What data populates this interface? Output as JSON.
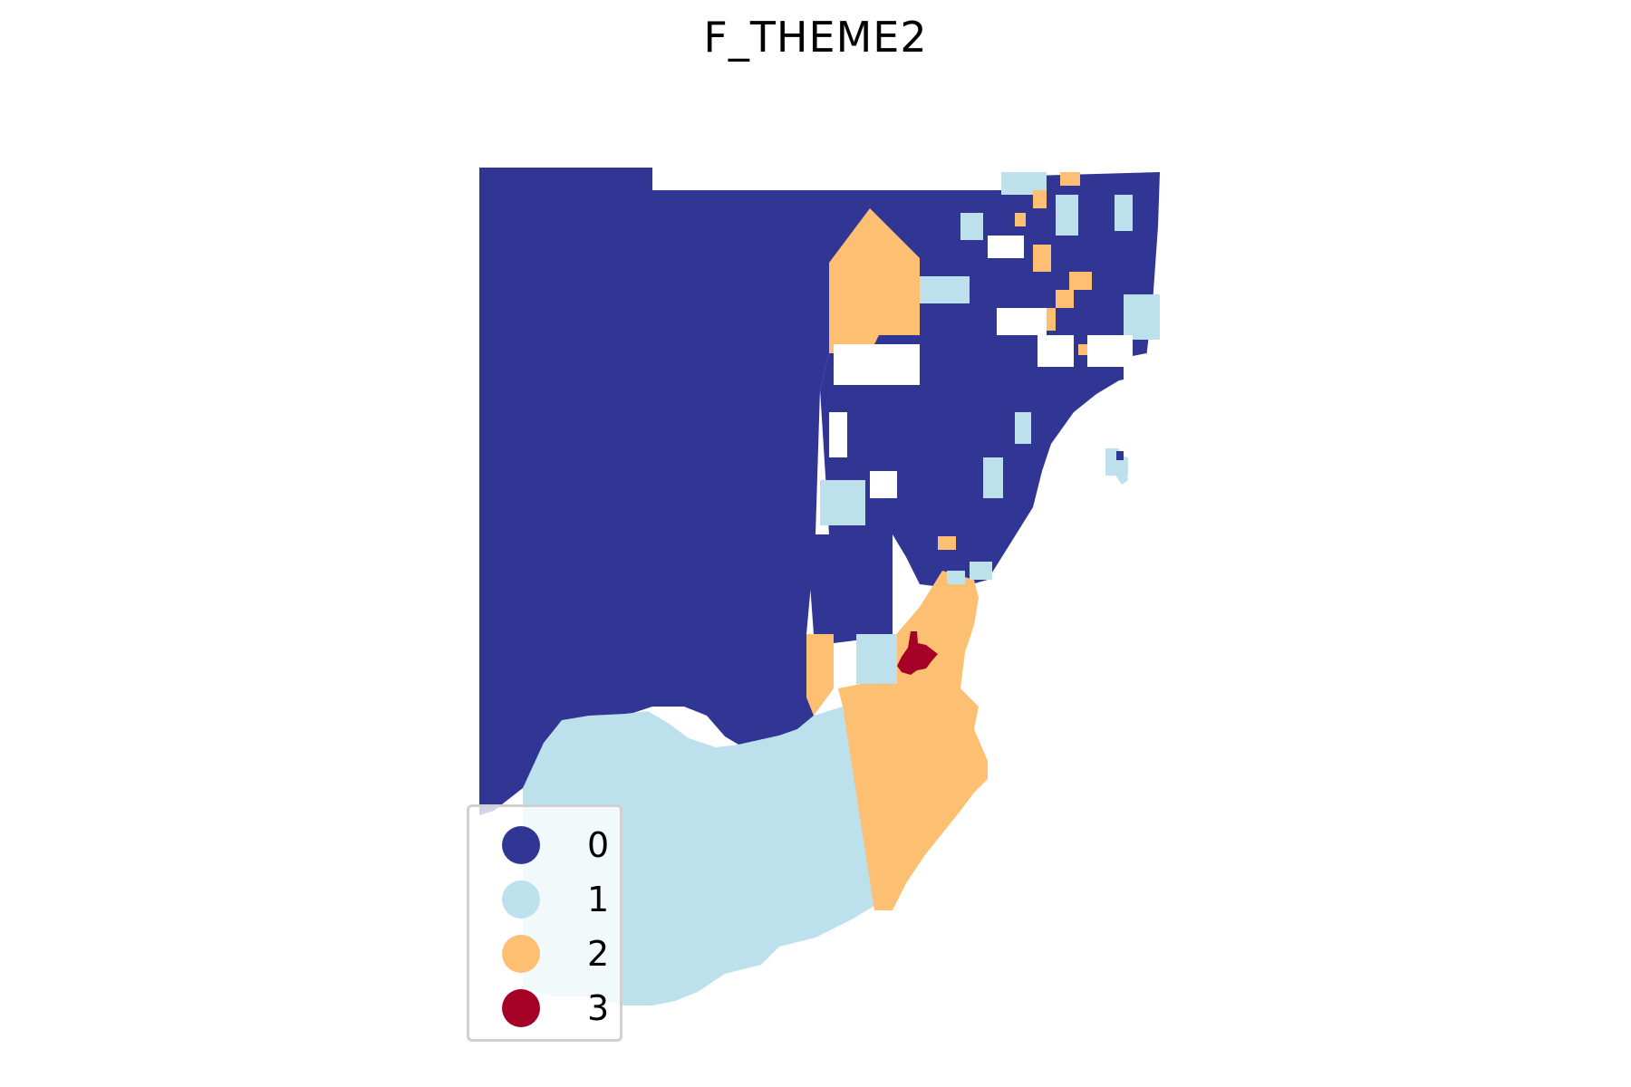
{
  "title": "F_THEME2",
  "legend": {
    "entries": [
      {
        "label": "0",
        "color": "#313695"
      },
      {
        "label": "1",
        "color": "#bde1ec"
      },
      {
        "label": "2",
        "color": "#fdbf71"
      },
      {
        "label": "3",
        "color": "#a50026"
      }
    ]
  },
  "colors": {
    "class_0": "#313695",
    "class_1": "#bde1ec",
    "class_2": "#fdbf71",
    "class_3": "#a50026",
    "background": "#ffffff"
  }
}
